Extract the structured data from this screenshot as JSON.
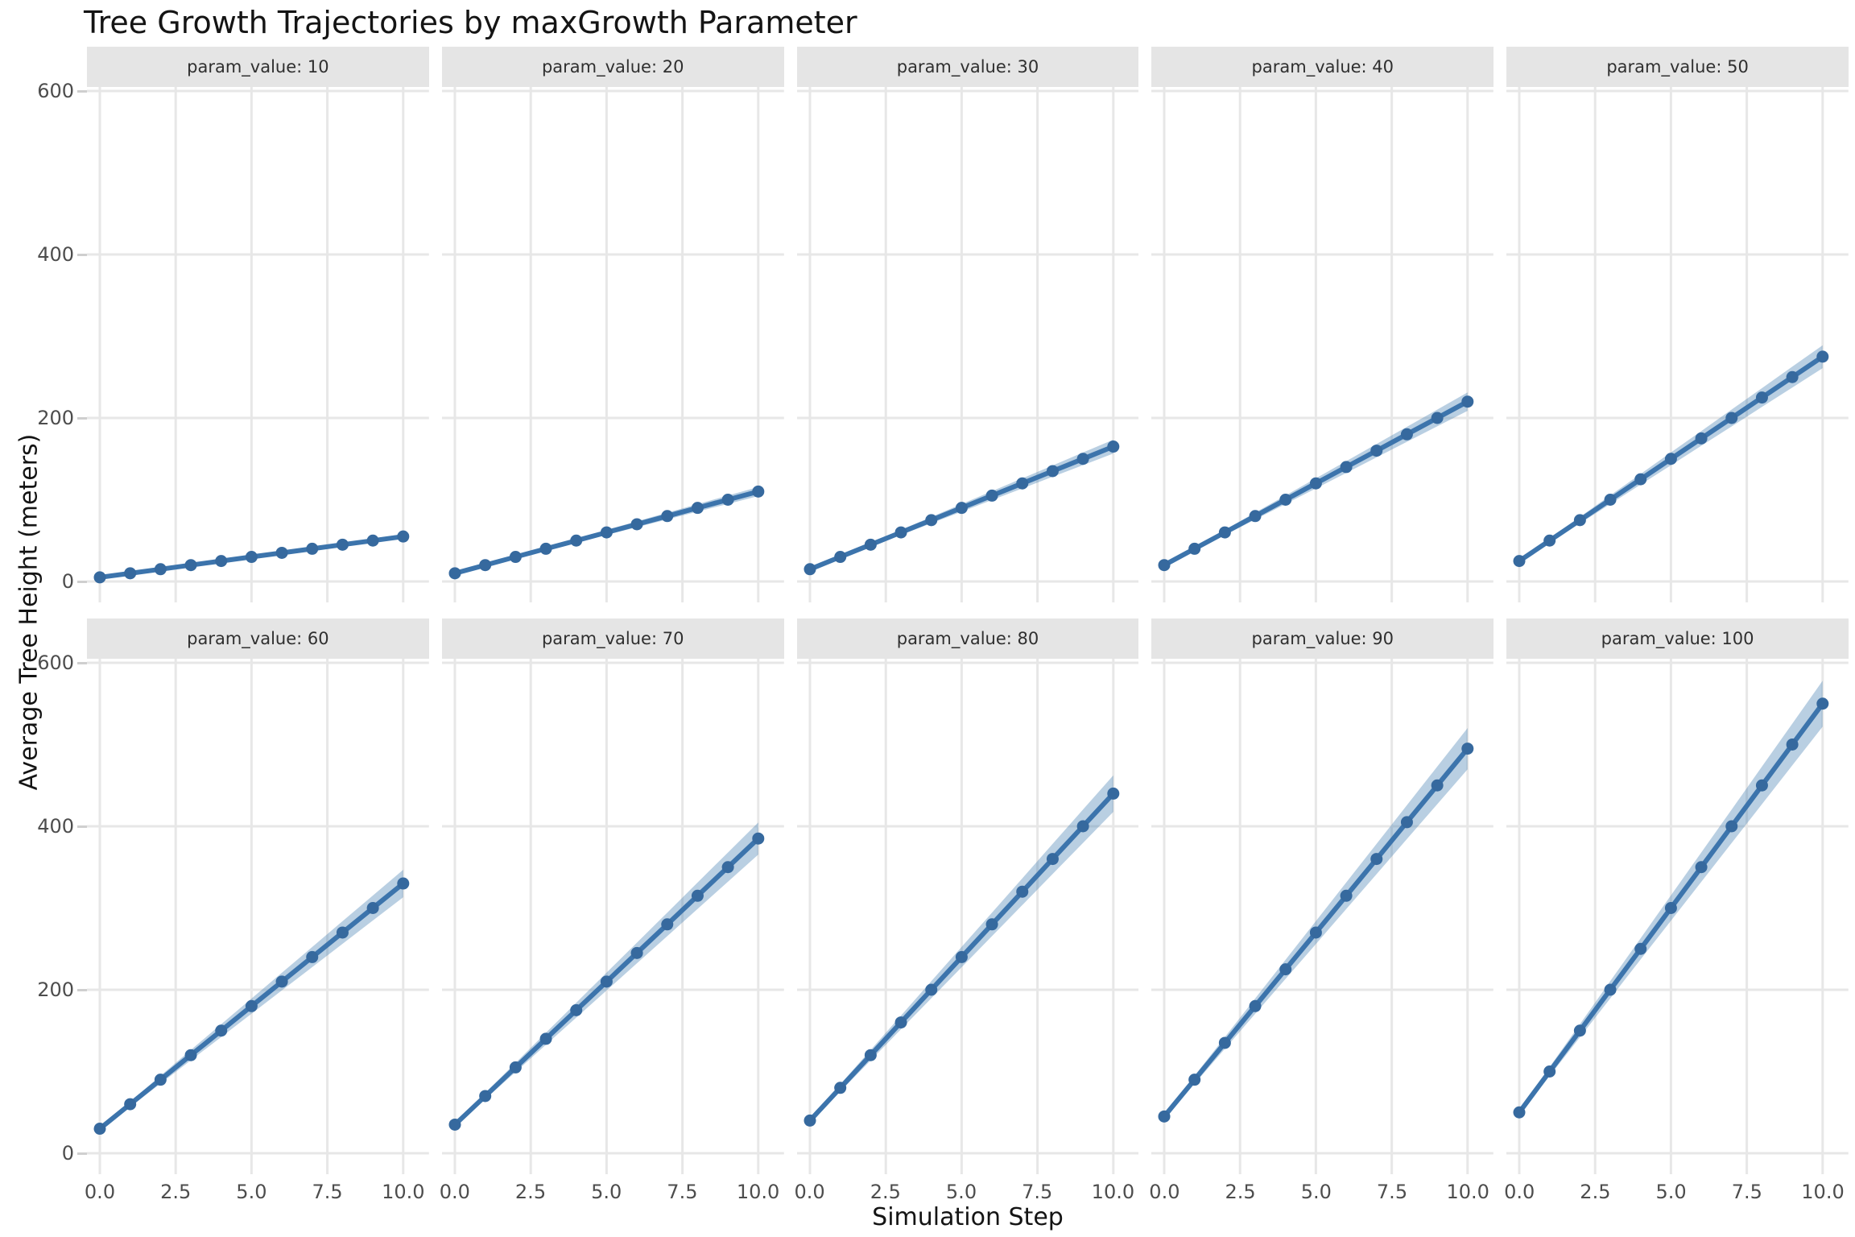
{
  "title": "Tree Growth Trajectories by maxGrowth Parameter",
  "style": {
    "line_color": "#3c74ac",
    "marker_color": "#36699e",
    "ribbon_color": "rgba(70,130,180,0.38)",
    "grid_color": "#e7e7e7",
    "strip_bg": "#e5e5e5",
    "strip_text": "#2f2f2f",
    "tick_text": "#4d4d4d",
    "background": "#ffffff"
  },
  "chart_data": {
    "type": "line",
    "title": "Tree Growth Trajectories by maxGrowth Parameter",
    "xlabel": "Simulation Step",
    "ylabel": "Average Tree Height (meters)",
    "grid": "major-only",
    "legend": false,
    "facet_variable": "param_value",
    "x": [
      0,
      1,
      2,
      3,
      4,
      5,
      6,
      7,
      8,
      9,
      10
    ],
    "x_tick_labels": [
      "0.0",
      "2.5",
      "5.0",
      "7.5",
      "10.0"
    ],
    "x_tick_values": [
      0,
      2.5,
      5,
      7.5,
      10
    ],
    "y_tick_labels": [
      "0",
      "200",
      "400",
      "600"
    ],
    "y_tick_values": [
      0,
      200,
      400,
      600
    ],
    "xlim": [
      -0.4,
      10.8
    ],
    "ylim": [
      -25,
      615
    ],
    "facets": [
      {
        "label": "param_value: 10",
        "param_value": 10,
        "values": [
          5,
          10,
          15,
          20,
          25,
          30,
          35,
          40,
          45,
          50,
          55
        ],
        "band": [
          0.3,
          0.6,
          0.8,
          1.1,
          1.3,
          1.6,
          1.8,
          2.1,
          2.3,
          2.6,
          2.8
        ]
      },
      {
        "label": "param_value: 20",
        "param_value": 20,
        "values": [
          10,
          20,
          30,
          40,
          50,
          60,
          70,
          80,
          90,
          100,
          110
        ],
        "band": [
          0.6,
          1.1,
          1.6,
          2.1,
          2.6,
          3.1,
          3.6,
          4.1,
          4.6,
          5.1,
          5.6
        ]
      },
      {
        "label": "param_value: 30",
        "param_value": 30,
        "values": [
          15,
          30,
          45,
          60,
          75,
          90,
          105,
          120,
          135,
          150,
          165
        ],
        "band": [
          0.9,
          1.7,
          2.4,
          3.2,
          3.9,
          4.7,
          5.4,
          6.2,
          6.9,
          7.7,
          8.4
        ]
      },
      {
        "label": "param_value: 40",
        "param_value": 40,
        "values": [
          20,
          40,
          60,
          80,
          100,
          120,
          140,
          160,
          180,
          200,
          220
        ],
        "band": [
          1.2,
          2.2,
          3.2,
          4.2,
          5.2,
          6.2,
          7.2,
          8.2,
          9.2,
          10.2,
          11.2
        ]
      },
      {
        "label": "param_value: 50",
        "param_value": 50,
        "values": [
          25,
          50,
          75,
          100,
          125,
          150,
          175,
          200,
          225,
          250,
          275
        ],
        "band": [
          1.5,
          2.8,
          4.0,
          5.3,
          6.5,
          7.8,
          9.0,
          10.3,
          11.5,
          12.8,
          14.0
        ]
      },
      {
        "label": "param_value: 60",
        "param_value": 60,
        "values": [
          30,
          60,
          90,
          120,
          150,
          180,
          210,
          240,
          270,
          300,
          330
        ],
        "band": [
          1.8,
          3.3,
          4.8,
          6.3,
          7.8,
          9.3,
          10.8,
          12.3,
          13.8,
          15.3,
          16.8
        ]
      },
      {
        "label": "param_value: 70",
        "param_value": 70,
        "values": [
          35,
          70,
          105,
          140,
          175,
          210,
          245,
          280,
          315,
          350,
          385
        ],
        "band": [
          2.1,
          3.9,
          5.6,
          7.4,
          9.1,
          10.9,
          12.6,
          14.4,
          16.1,
          17.9,
          19.6
        ]
      },
      {
        "label": "param_value: 80",
        "param_value": 80,
        "values": [
          40,
          80,
          120,
          160,
          200,
          240,
          280,
          320,
          360,
          400,
          440
        ],
        "band": [
          2.4,
          4.4,
          6.4,
          8.4,
          10.4,
          12.4,
          14.4,
          16.4,
          18.4,
          20.4,
          22.4
        ]
      },
      {
        "label": "param_value: 90",
        "param_value": 90,
        "values": [
          45,
          90,
          135,
          180,
          225,
          270,
          315,
          360,
          405,
          450,
          495
        ],
        "band": [
          2.7,
          5.0,
          7.2,
          9.5,
          11.7,
          14.0,
          16.2,
          18.5,
          20.7,
          23.0,
          25.2
        ]
      },
      {
        "label": "param_value: 100",
        "param_value": 100,
        "values": [
          50,
          100,
          150,
          200,
          250,
          300,
          350,
          400,
          450,
          500,
          550
        ],
        "band": [
          3.0,
          5.5,
          8.0,
          10.5,
          13.0,
          15.5,
          18.0,
          20.5,
          23.0,
          25.5,
          28.0
        ]
      }
    ]
  }
}
